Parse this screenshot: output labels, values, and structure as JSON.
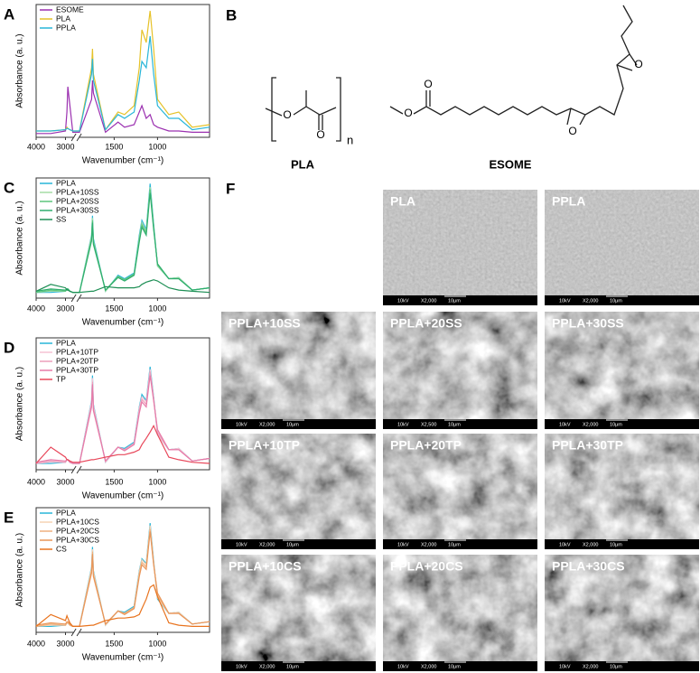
{
  "chart_data": [
    {
      "type": "line",
      "panel": "A",
      "x_label": "Wavenumber (cm⁻¹)",
      "y_label": "Absorbance (a. u.)",
      "x": [
        4000,
        3500,
        3000,
        2950,
        2920,
        2850,
        2750,
        1900,
        1760,
        1750,
        1740,
        1600,
        1455,
        1380,
        1270,
        1210,
        1180,
        1130,
        1085,
        1045,
        1000,
        870,
        755,
        600,
        400
      ],
      "xlim": [
        4000,
        400
      ],
      "xbreak": [
        2700,
        1900
      ],
      "xticks": [
        4000,
        3000,
        1500,
        1000
      ],
      "ylim": [
        0,
        105
      ],
      "legend": "upper left",
      "series": [
        {
          "name": "ESOME",
          "color": "#9b30b0",
          "values": [
            3,
            3,
            5,
            20,
            40,
            25,
            4,
            4,
            30,
            45,
            35,
            4,
            12,
            8,
            10,
            20,
            25,
            15,
            18,
            10,
            8,
            5,
            5,
            4,
            4
          ]
        },
        {
          "name": "PLA",
          "color": "#e6c229",
          "values": [
            5,
            5,
            6,
            8,
            7,
            6,
            5,
            5,
            55,
            70,
            50,
            6,
            20,
            18,
            25,
            55,
            85,
            75,
            100,
            70,
            30,
            18,
            20,
            8,
            10
          ]
        },
        {
          "name": "PPLA",
          "color": "#29b6d9",
          "values": [
            5,
            5,
            6,
            7,
            7,
            6,
            5,
            5,
            50,
            62,
            45,
            6,
            18,
            15,
            20,
            45,
            60,
            55,
            80,
            50,
            25,
            15,
            15,
            6,
            8
          ]
        }
      ]
    },
    {
      "type": "line",
      "panel": "C",
      "x_label": "Wavenumber (cm⁻¹)",
      "y_label": "Absorbance (a. u.)",
      "x": [
        4000,
        3500,
        3000,
        2950,
        2920,
        2850,
        2750,
        1900,
        1760,
        1750,
        1740,
        1600,
        1455,
        1380,
        1270,
        1210,
        1180,
        1130,
        1085,
        1045,
        1000,
        870,
        755,
        600,
        400
      ],
      "xlim": [
        4000,
        400
      ],
      "xbreak": [
        2700,
        1900
      ],
      "xticks": [
        4000,
        3000,
        1500,
        1000
      ],
      "ylim": [
        0,
        105
      ],
      "legend": "upper left",
      "series": [
        {
          "name": "PPLA",
          "color": "#29b6d9",
          "values": [
            5,
            5,
            6,
            8,
            8,
            6,
            5,
            5,
            55,
            72,
            52,
            6,
            20,
            17,
            22,
            55,
            68,
            60,
            100,
            65,
            28,
            17,
            18,
            7,
            9
          ]
        },
        {
          "name": "PPLA+10SS",
          "color": "#a5dca5",
          "values": [
            5,
            6,
            6,
            8,
            8,
            6,
            5,
            5,
            54,
            70,
            50,
            6,
            19,
            16,
            21,
            53,
            66,
            58,
            97,
            63,
            28,
            17,
            18,
            7,
            9
          ]
        },
        {
          "name": "PPLA+20SS",
          "color": "#5cc67c",
          "values": [
            5,
            7,
            6,
            8,
            8,
            6,
            5,
            5,
            52,
            68,
            49,
            7,
            19,
            16,
            21,
            51,
            64,
            57,
            95,
            62,
            29,
            17,
            17,
            7,
            9
          ]
        },
        {
          "name": "PPLA+30SS",
          "color": "#2fae6e",
          "values": [
            6,
            8,
            7,
            8,
            8,
            6,
            5,
            5,
            50,
            66,
            47,
            7,
            18,
            15,
            20,
            49,
            62,
            55,
            92,
            60,
            30,
            17,
            17,
            7,
            9
          ]
        },
        {
          "name": "SS",
          "color": "#1e8f55",
          "values": [
            6,
            12,
            9,
            7,
            7,
            6,
            5,
            5,
            6,
            6,
            6,
            10,
            9,
            9,
            9,
            10,
            12,
            14,
            15,
            16,
            15,
            9,
            7,
            6,
            5
          ]
        }
      ]
    },
    {
      "type": "line",
      "panel": "D",
      "x_label": "Wavenumber (cm⁻¹)",
      "y_label": "Absorbance (a. u.)",
      "x": [
        4000,
        3500,
        3000,
        2950,
        2920,
        2850,
        2750,
        1900,
        1760,
        1750,
        1740,
        1600,
        1455,
        1380,
        1270,
        1210,
        1180,
        1130,
        1085,
        1045,
        1000,
        870,
        755,
        600,
        400
      ],
      "xlim": [
        4000,
        400
      ],
      "xbreak": [
        2700,
        1900
      ],
      "xticks": [
        4000,
        3000,
        1500,
        1000
      ],
      "ylim": [
        0,
        105
      ],
      "legend": "upper left",
      "series": [
        {
          "name": "PPLA",
          "color": "#29b6d9",
          "values": [
            5,
            5,
            6,
            8,
            8,
            6,
            5,
            5,
            55,
            75,
            52,
            6,
            18,
            17,
            22,
            50,
            60,
            55,
            82,
            58,
            28,
            16,
            17,
            7,
            9
          ]
        },
        {
          "name": "PPLA+10TP",
          "color": "#f5c3d3",
          "values": [
            5,
            6,
            6,
            8,
            8,
            6,
            5,
            5,
            54,
            73,
            51,
            6,
            18,
            16,
            21,
            49,
            58,
            54,
            80,
            57,
            28,
            16,
            17,
            7,
            9
          ]
        },
        {
          "name": "PPLA+20TP",
          "color": "#ec9fbb",
          "values": [
            5,
            7,
            6,
            8,
            8,
            6,
            5,
            5,
            52,
            70,
            49,
            7,
            18,
            16,
            21,
            47,
            56,
            52,
            78,
            56,
            30,
            16,
            16,
            7,
            9
          ]
        },
        {
          "name": "PPLA+30TP",
          "color": "#e77aa8",
          "values": [
            6,
            8,
            7,
            8,
            8,
            6,
            5,
            5,
            50,
            68,
            47,
            7,
            18,
            15,
            20,
            45,
            54,
            50,
            75,
            55,
            32,
            16,
            16,
            7,
            9
          ]
        },
        {
          "name": "TP",
          "color": "#e8475a",
          "values": [
            5,
            18,
            10,
            8,
            8,
            7,
            6,
            6,
            8,
            8,
            8,
            10,
            12,
            12,
            14,
            16,
            20,
            25,
            30,
            35,
            28,
            10,
            8,
            6,
            5
          ]
        }
      ]
    },
    {
      "type": "line",
      "panel": "E",
      "x_label": "Wavenumber (cm⁻¹)",
      "y_label": "Absorbance (a. u.)",
      "x": [
        4000,
        3500,
        3000,
        2950,
        2920,
        2850,
        2750,
        1900,
        1760,
        1750,
        1740,
        1600,
        1455,
        1380,
        1270,
        1210,
        1180,
        1130,
        1085,
        1045,
        1000,
        870,
        755,
        600,
        400
      ],
      "xlim": [
        4000,
        400
      ],
      "xbreak": [
        2700,
        1900
      ],
      "xticks": [
        4000,
        3000,
        1500,
        1000
      ],
      "ylim": [
        0,
        105
      ],
      "legend": "upper left",
      "series": [
        {
          "name": "PPLA",
          "color": "#29b6d9",
          "values": [
            5,
            5,
            6,
            8,
            8,
            6,
            5,
            5,
            55,
            72,
            52,
            6,
            18,
            17,
            22,
            52,
            62,
            58,
            92,
            60,
            28,
            16,
            17,
            7,
            9
          ]
        },
        {
          "name": "PPLA+10CS",
          "color": "#f6d2b4",
          "values": [
            5,
            6,
            6,
            8,
            8,
            6,
            5,
            5,
            54,
            70,
            51,
            6,
            18,
            16,
            21,
            51,
            61,
            57,
            90,
            59,
            29,
            16,
            17,
            7,
            9
          ]
        },
        {
          "name": "PPLA+20CS",
          "color": "#efb17f",
          "values": [
            5,
            7,
            6,
            8,
            8,
            6,
            5,
            5,
            52,
            68,
            49,
            7,
            18,
            16,
            21,
            49,
            59,
            55,
            87,
            58,
            31,
            16,
            16,
            7,
            9
          ]
        },
        {
          "name": "PPLA+30CS",
          "color": "#e99558",
          "values": [
            6,
            8,
            7,
            9,
            9,
            7,
            5,
            5,
            50,
            66,
            47,
            7,
            18,
            15,
            20,
            47,
            57,
            53,
            85,
            57,
            33,
            16,
            16,
            7,
            9
          ]
        },
        {
          "name": "CS",
          "color": "#e8731e",
          "values": [
            5,
            15,
            10,
            14,
            12,
            8,
            5,
            5,
            6,
            6,
            6,
            10,
            12,
            12,
            13,
            15,
            20,
            28,
            38,
            40,
            30,
            8,
            6,
            5,
            5
          ]
        }
      ]
    }
  ],
  "structures": {
    "panel": "B",
    "pla": {
      "name": "PLA",
      "atoms": [
        "O",
        "O"
      ],
      "repeat": "n"
    },
    "esome": {
      "name": "ESOME",
      "atoms": [
        "O",
        "O",
        "O",
        "O"
      ]
    }
  },
  "micrographs": {
    "panel": "F",
    "images": [
      {
        "label": "PLA",
        "bar": [
          "10kV",
          "X2,000",
          "10μm"
        ]
      },
      {
        "label": "PPLA",
        "bar": [
          "10kV",
          "X2,000",
          "10μm"
        ]
      },
      {
        "label": "PPLA+10SS",
        "bar": [
          "10kV",
          "X2,000",
          "10μm"
        ]
      },
      {
        "label": "PPLA+20SS",
        "bar": [
          "10kV",
          "X2,500",
          "10μm"
        ]
      },
      {
        "label": "PPLA+30SS",
        "bar": [
          "10kV",
          "X2,000",
          "10μm"
        ]
      },
      {
        "label": "PPLA+10TP",
        "bar": [
          "10kV",
          "X2,000",
          "10μm"
        ]
      },
      {
        "label": "PPLA+20TP",
        "bar": [
          "10kV",
          "X2,000",
          "10μm"
        ]
      },
      {
        "label": "PPLA+30TP",
        "bar": [
          "10kV",
          "X2,000",
          "10μm"
        ]
      },
      {
        "label": "PPLA+10CS",
        "bar": [
          "10kV",
          "X2,000",
          "10μm"
        ]
      },
      {
        "label": "PPLA+20CS",
        "bar": [
          "10kV",
          "X2,000",
          "10μm"
        ]
      },
      {
        "label": "PPLA+30CS",
        "bar": [
          "10kV",
          "X2,000",
          "10μm"
        ]
      }
    ]
  }
}
